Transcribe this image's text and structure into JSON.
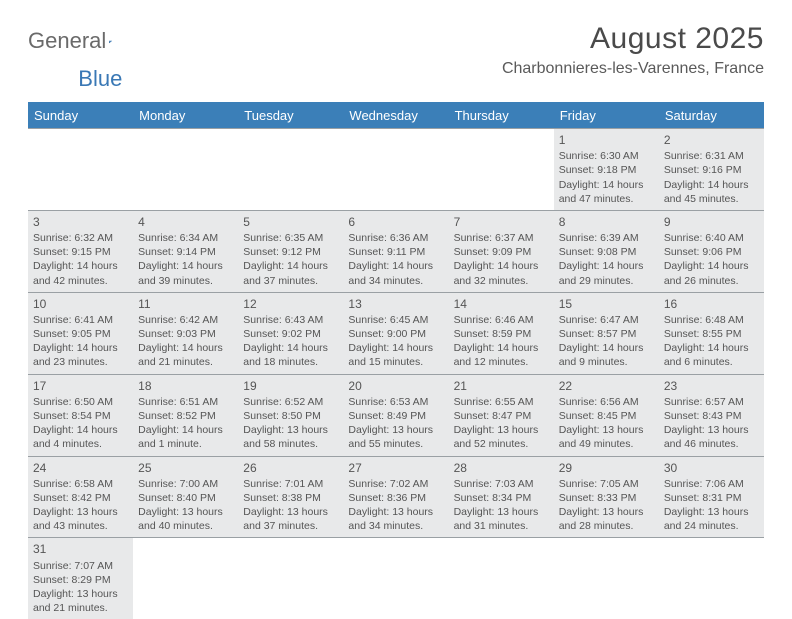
{
  "logo": {
    "text_a": "General",
    "text_b": "Blue"
  },
  "title": "August 2025",
  "location": "Charbonnieres-les-Varennes, France",
  "weekdays": [
    "Sunday",
    "Monday",
    "Tuesday",
    "Wednesday",
    "Thursday",
    "Friday",
    "Saturday"
  ],
  "colors": {
    "header_bg": "#3b7fb8",
    "header_text": "#ffffff",
    "cell_bg": "#e8e9ea",
    "border": "#9aa0a4",
    "text": "#555555"
  },
  "grid": [
    [
      null,
      null,
      null,
      null,
      null,
      {
        "n": "1",
        "sr": "Sunrise: 6:30 AM",
        "ss": "Sunset: 9:18 PM",
        "d1": "Daylight: 14 hours",
        "d2": "and 47 minutes."
      },
      {
        "n": "2",
        "sr": "Sunrise: 6:31 AM",
        "ss": "Sunset: 9:16 PM",
        "d1": "Daylight: 14 hours",
        "d2": "and 45 minutes."
      }
    ],
    [
      {
        "n": "3",
        "sr": "Sunrise: 6:32 AM",
        "ss": "Sunset: 9:15 PM",
        "d1": "Daylight: 14 hours",
        "d2": "and 42 minutes."
      },
      {
        "n": "4",
        "sr": "Sunrise: 6:34 AM",
        "ss": "Sunset: 9:14 PM",
        "d1": "Daylight: 14 hours",
        "d2": "and 39 minutes."
      },
      {
        "n": "5",
        "sr": "Sunrise: 6:35 AM",
        "ss": "Sunset: 9:12 PM",
        "d1": "Daylight: 14 hours",
        "d2": "and 37 minutes."
      },
      {
        "n": "6",
        "sr": "Sunrise: 6:36 AM",
        "ss": "Sunset: 9:11 PM",
        "d1": "Daylight: 14 hours",
        "d2": "and 34 minutes."
      },
      {
        "n": "7",
        "sr": "Sunrise: 6:37 AM",
        "ss": "Sunset: 9:09 PM",
        "d1": "Daylight: 14 hours",
        "d2": "and 32 minutes."
      },
      {
        "n": "8",
        "sr": "Sunrise: 6:39 AM",
        "ss": "Sunset: 9:08 PM",
        "d1": "Daylight: 14 hours",
        "d2": "and 29 minutes."
      },
      {
        "n": "9",
        "sr": "Sunrise: 6:40 AM",
        "ss": "Sunset: 9:06 PM",
        "d1": "Daylight: 14 hours",
        "d2": "and 26 minutes."
      }
    ],
    [
      {
        "n": "10",
        "sr": "Sunrise: 6:41 AM",
        "ss": "Sunset: 9:05 PM",
        "d1": "Daylight: 14 hours",
        "d2": "and 23 minutes."
      },
      {
        "n": "11",
        "sr": "Sunrise: 6:42 AM",
        "ss": "Sunset: 9:03 PM",
        "d1": "Daylight: 14 hours",
        "d2": "and 21 minutes."
      },
      {
        "n": "12",
        "sr": "Sunrise: 6:43 AM",
        "ss": "Sunset: 9:02 PM",
        "d1": "Daylight: 14 hours",
        "d2": "and 18 minutes."
      },
      {
        "n": "13",
        "sr": "Sunrise: 6:45 AM",
        "ss": "Sunset: 9:00 PM",
        "d1": "Daylight: 14 hours",
        "d2": "and 15 minutes."
      },
      {
        "n": "14",
        "sr": "Sunrise: 6:46 AM",
        "ss": "Sunset: 8:59 PM",
        "d1": "Daylight: 14 hours",
        "d2": "and 12 minutes."
      },
      {
        "n": "15",
        "sr": "Sunrise: 6:47 AM",
        "ss": "Sunset: 8:57 PM",
        "d1": "Daylight: 14 hours",
        "d2": "and 9 minutes."
      },
      {
        "n": "16",
        "sr": "Sunrise: 6:48 AM",
        "ss": "Sunset: 8:55 PM",
        "d1": "Daylight: 14 hours",
        "d2": "and 6 minutes."
      }
    ],
    [
      {
        "n": "17",
        "sr": "Sunrise: 6:50 AM",
        "ss": "Sunset: 8:54 PM",
        "d1": "Daylight: 14 hours",
        "d2": "and 4 minutes."
      },
      {
        "n": "18",
        "sr": "Sunrise: 6:51 AM",
        "ss": "Sunset: 8:52 PM",
        "d1": "Daylight: 14 hours",
        "d2": "and 1 minute."
      },
      {
        "n": "19",
        "sr": "Sunrise: 6:52 AM",
        "ss": "Sunset: 8:50 PM",
        "d1": "Daylight: 13 hours",
        "d2": "and 58 minutes."
      },
      {
        "n": "20",
        "sr": "Sunrise: 6:53 AM",
        "ss": "Sunset: 8:49 PM",
        "d1": "Daylight: 13 hours",
        "d2": "and 55 minutes."
      },
      {
        "n": "21",
        "sr": "Sunrise: 6:55 AM",
        "ss": "Sunset: 8:47 PM",
        "d1": "Daylight: 13 hours",
        "d2": "and 52 minutes."
      },
      {
        "n": "22",
        "sr": "Sunrise: 6:56 AM",
        "ss": "Sunset: 8:45 PM",
        "d1": "Daylight: 13 hours",
        "d2": "and 49 minutes."
      },
      {
        "n": "23",
        "sr": "Sunrise: 6:57 AM",
        "ss": "Sunset: 8:43 PM",
        "d1": "Daylight: 13 hours",
        "d2": "and 46 minutes."
      }
    ],
    [
      {
        "n": "24",
        "sr": "Sunrise: 6:58 AM",
        "ss": "Sunset: 8:42 PM",
        "d1": "Daylight: 13 hours",
        "d2": "and 43 minutes."
      },
      {
        "n": "25",
        "sr": "Sunrise: 7:00 AM",
        "ss": "Sunset: 8:40 PM",
        "d1": "Daylight: 13 hours",
        "d2": "and 40 minutes."
      },
      {
        "n": "26",
        "sr": "Sunrise: 7:01 AM",
        "ss": "Sunset: 8:38 PM",
        "d1": "Daylight: 13 hours",
        "d2": "and 37 minutes."
      },
      {
        "n": "27",
        "sr": "Sunrise: 7:02 AM",
        "ss": "Sunset: 8:36 PM",
        "d1": "Daylight: 13 hours",
        "d2": "and 34 minutes."
      },
      {
        "n": "28",
        "sr": "Sunrise: 7:03 AM",
        "ss": "Sunset: 8:34 PM",
        "d1": "Daylight: 13 hours",
        "d2": "and 31 minutes."
      },
      {
        "n": "29",
        "sr": "Sunrise: 7:05 AM",
        "ss": "Sunset: 8:33 PM",
        "d1": "Daylight: 13 hours",
        "d2": "and 28 minutes."
      },
      {
        "n": "30",
        "sr": "Sunrise: 7:06 AM",
        "ss": "Sunset: 8:31 PM",
        "d1": "Daylight: 13 hours",
        "d2": "and 24 minutes."
      }
    ],
    [
      {
        "n": "31",
        "sr": "Sunrise: 7:07 AM",
        "ss": "Sunset: 8:29 PM",
        "d1": "Daylight: 13 hours",
        "d2": "and 21 minutes."
      },
      null,
      null,
      null,
      null,
      null,
      null
    ]
  ]
}
